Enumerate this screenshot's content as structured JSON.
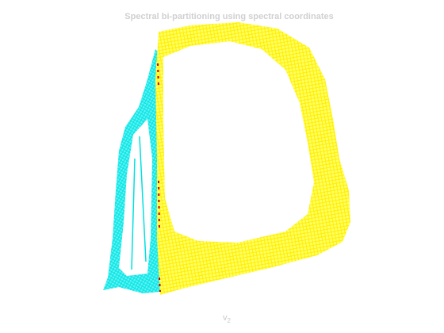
{
  "title": "Spectral bi-partitioning using spectral coordinates",
  "x_label": {
    "base": "v",
    "subscript": "2"
  }
}
